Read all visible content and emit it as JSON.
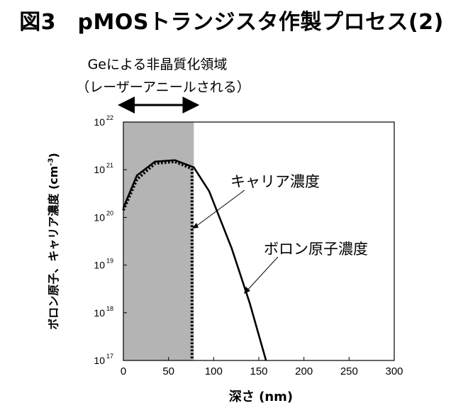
{
  "title": "図3　pMOSトランジスタ作製プロセス(2)",
  "annotation": {
    "line1": "Geによる非晶質化領域",
    "line2": "（レーザーアニールされる）"
  },
  "chart_data": {
    "type": "line",
    "xlabel": "深さ (nm)",
    "ylabel": "ボロン原子、キャリア濃度 (cm-3)",
    "ylabel_parts": {
      "main": "ボロン原子、キャリア濃度 (cm",
      "sup": "-3",
      "end": ")"
    },
    "xlim": [
      0,
      300
    ],
    "ylim_log10": [
      17,
      22
    ],
    "xticks": [
      0,
      50,
      100,
      150,
      200,
      250,
      300
    ],
    "yticks": [
      {
        "base": "10",
        "exp": "22",
        "log": 22
      },
      {
        "base": "10",
        "exp": "21",
        "log": 21
      },
      {
        "base": "10",
        "exp": "20",
        "log": 20
      },
      {
        "base": "10",
        "exp": "19",
        "log": 19
      },
      {
        "base": "10",
        "exp": "18",
        "log": 18
      },
      {
        "base": "10",
        "exp": "17",
        "log": 17
      }
    ],
    "shaded_region": {
      "x_start": 0,
      "x_end": 78,
      "color": "#b4b4b4",
      "label": "Geによる非晶質化領域"
    },
    "series": [
      {
        "name": "ボロン原子濃度",
        "style": "solid",
        "x": [
          0,
          15,
          35,
          57,
          78,
          95,
          120,
          140,
          158
        ],
        "log10": [
          20.2,
          20.88,
          21.17,
          21.2,
          21.05,
          20.55,
          19.35,
          18.2,
          17.0
        ]
      },
      {
        "name": "キャリア濃度",
        "style": "dotted",
        "x": [
          0,
          15,
          35,
          57,
          75,
          76,
          76
        ],
        "log10": [
          20.15,
          20.8,
          21.13,
          21.17,
          21.03,
          21.0,
          17.0
        ]
      }
    ],
    "labels": {
      "carrier": "キャリア濃度",
      "boron": "ボロン原子濃度"
    },
    "colors": {
      "line": "#000000",
      "shade": "#b4b4b4"
    }
  }
}
